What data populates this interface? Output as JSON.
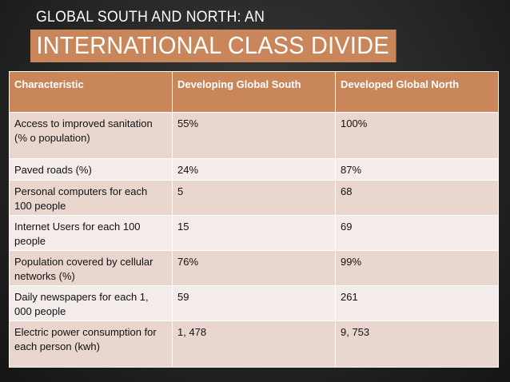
{
  "slide": {
    "subtitle": "GLOBAL SOUTH AND NORTH: AN",
    "title": "INTERNATIONAL CLASS DIVIDE"
  },
  "table": {
    "headers": [
      "Characteristic",
      "Developing Global South",
      "Developed Global North"
    ],
    "rows": [
      [
        "Access to improved sanitation (% o population)",
        "55%",
        "100%"
      ],
      [
        "Paved roads (%)",
        "24%",
        "87%"
      ],
      [
        "Personal computers for each 100 people",
        "5",
        "68"
      ],
      [
        "Internet Users for each 100 people",
        "15",
        "69"
      ],
      [
        "Population covered by cellular networks (%)",
        "76%",
        "99%"
      ],
      [
        "Daily newspapers for each 1, 000 people",
        "59",
        "261"
      ],
      [
        "Electric power consumption for each person (kwh)",
        "1, 478",
        "9, 753"
      ]
    ]
  },
  "colors": {
    "accent": "#c8865a",
    "row_dark": "#e9d7cf",
    "row_light": "#f4ecea",
    "background": "#262626"
  }
}
